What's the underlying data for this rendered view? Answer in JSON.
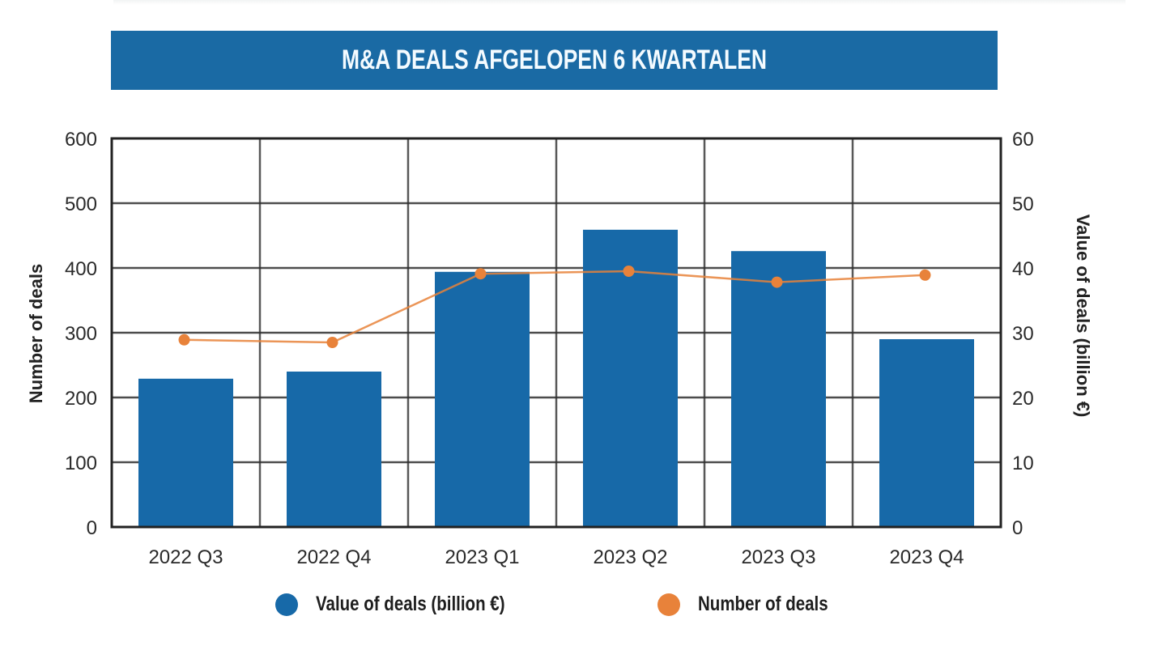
{
  "title": "M&A DEALS AFGELOPEN 6 KWARTALEN",
  "colors": {
    "title_bg": "#1a6aa4",
    "title_text": "#f4fbff",
    "bar": "#1769a8",
    "line": "#e8823a",
    "grid": "#2f2f2f"
  },
  "chart_data": {
    "type": "bar+line",
    "title": "M&A DEALS AFGELOPEN 6 KWARTALEN",
    "categories": [
      "2022 Q3",
      "2022 Q4",
      "2023 Q1",
      "2023 Q2",
      "2023 Q3",
      "2023 Q4"
    ],
    "series": [
      {
        "name": "Value of deals (billion €)",
        "type": "bar",
        "axis": "right",
        "values": [
          22.9,
          24.0,
          39.4,
          45.9,
          42.6,
          29.0
        ]
      },
      {
        "name": "Number of deals",
        "type": "line",
        "axis": "left",
        "values": [
          289,
          285,
          391,
          395,
          378,
          389
        ]
      }
    ],
    "left_axis": {
      "label": "Number of deals",
      "ylim": [
        0,
        600
      ],
      "ticks": [
        "0",
        "100",
        "200",
        "300",
        "400",
        "500",
        "600"
      ]
    },
    "right_axis": {
      "label": "Value of deals (billion €)",
      "ylim": [
        0,
        60
      ],
      "ticks": [
        "0",
        "10",
        "20",
        "30",
        "40",
        "50",
        "60"
      ]
    },
    "grid": true,
    "legend": {
      "placement": "bottom",
      "entries": [
        "Value of deals (billion €)",
        "Number of deals"
      ]
    }
  }
}
